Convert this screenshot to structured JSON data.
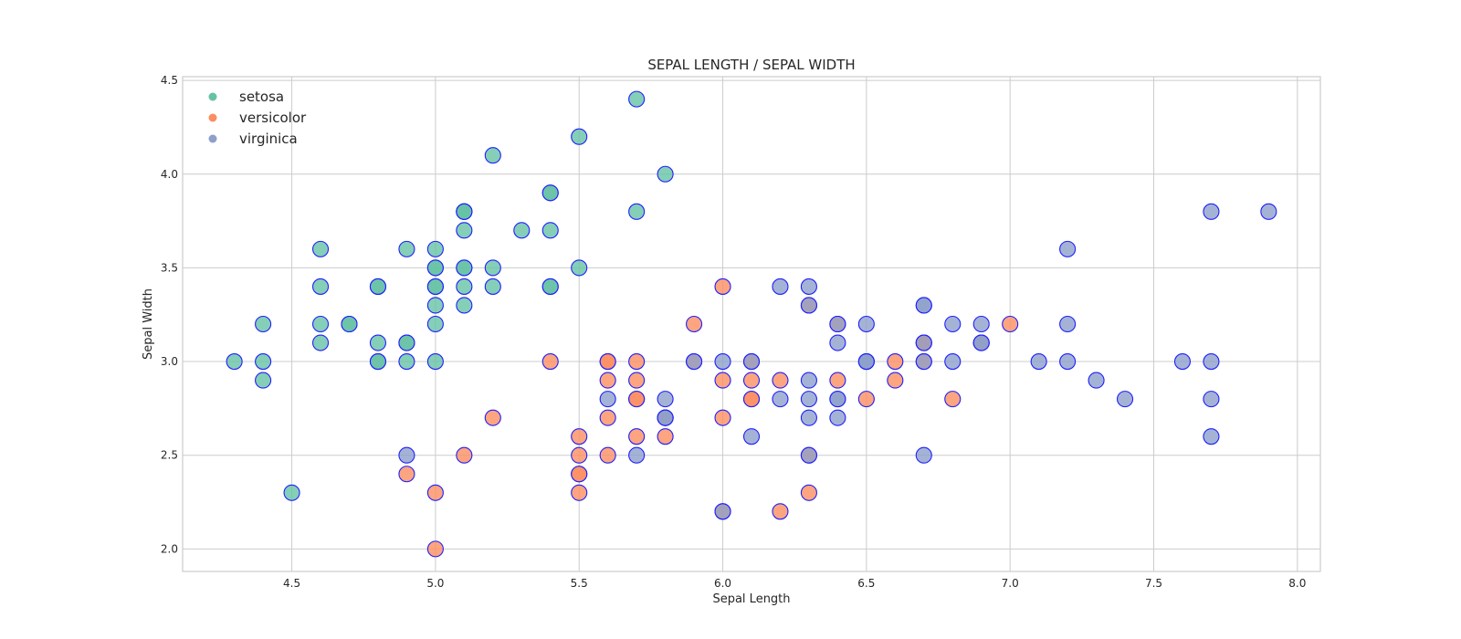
{
  "chart_data": {
    "type": "scatter",
    "title": "SEPAL LENGTH / SEPAL WIDTH",
    "xlabel": "Sepal Length",
    "ylabel": "Sepal Width",
    "xlim": [
      4.12,
      8.08
    ],
    "ylim": [
      1.88,
      4.52
    ],
    "xticks": [
      4.5,
      5.0,
      5.5,
      6.0,
      6.5,
      7.0,
      7.5,
      8.0
    ],
    "yticks": [
      2.0,
      2.5,
      3.0,
      3.5,
      4.0,
      4.5
    ],
    "grid": true,
    "legend_position": "top-left",
    "marker_edge_color": "#1f1fff",
    "series": [
      {
        "name": "setosa",
        "color": "#66c2a5",
        "points": [
          [
            5.1,
            3.5
          ],
          [
            4.9,
            3.0
          ],
          [
            4.7,
            3.2
          ],
          [
            4.6,
            3.1
          ],
          [
            5.0,
            3.6
          ],
          [
            5.4,
            3.9
          ],
          [
            4.6,
            3.4
          ],
          [
            5.0,
            3.4
          ],
          [
            4.4,
            2.9
          ],
          [
            4.9,
            3.1
          ],
          [
            5.4,
            3.7
          ],
          [
            4.8,
            3.4
          ],
          [
            4.8,
            3.0
          ],
          [
            4.3,
            3.0
          ],
          [
            5.8,
            4.0
          ],
          [
            5.7,
            4.4
          ],
          [
            5.4,
            3.9
          ],
          [
            5.1,
            3.5
          ],
          [
            5.7,
            3.8
          ],
          [
            5.1,
            3.8
          ],
          [
            5.4,
            3.4
          ],
          [
            5.1,
            3.7
          ],
          [
            4.6,
            3.6
          ],
          [
            5.1,
            3.3
          ],
          [
            4.8,
            3.4
          ],
          [
            5.0,
            3.0
          ],
          [
            5.0,
            3.4
          ],
          [
            5.2,
            3.5
          ],
          [
            5.2,
            3.4
          ],
          [
            4.7,
            3.2
          ],
          [
            4.8,
            3.1
          ],
          [
            5.4,
            3.4
          ],
          [
            5.2,
            4.1
          ],
          [
            5.5,
            4.2
          ],
          [
            4.9,
            3.1
          ],
          [
            5.0,
            3.2
          ],
          [
            5.5,
            3.5
          ],
          [
            4.9,
            3.6
          ],
          [
            4.4,
            3.0
          ],
          [
            5.1,
            3.4
          ],
          [
            5.0,
            3.5
          ],
          [
            4.5,
            2.3
          ],
          [
            4.4,
            3.2
          ],
          [
            5.0,
            3.5
          ],
          [
            5.1,
            3.8
          ],
          [
            4.8,
            3.0
          ],
          [
            5.1,
            3.8
          ],
          [
            4.6,
            3.2
          ],
          [
            5.3,
            3.7
          ],
          [
            5.0,
            3.3
          ]
        ]
      },
      {
        "name": "versicolor",
        "color": "#fc8d62",
        "points": [
          [
            7.0,
            3.2
          ],
          [
            6.4,
            3.2
          ],
          [
            6.9,
            3.1
          ],
          [
            5.5,
            2.3
          ],
          [
            6.5,
            2.8
          ],
          [
            5.7,
            2.8
          ],
          [
            6.3,
            3.3
          ],
          [
            4.9,
            2.4
          ],
          [
            6.6,
            2.9
          ],
          [
            5.2,
            2.7
          ],
          [
            5.0,
            2.0
          ],
          [
            5.9,
            3.0
          ],
          [
            6.0,
            2.2
          ],
          [
            6.1,
            2.9
          ],
          [
            5.6,
            2.9
          ],
          [
            6.7,
            3.1
          ],
          [
            5.6,
            3.0
          ],
          [
            5.8,
            2.7
          ],
          [
            6.2,
            2.2
          ],
          [
            5.6,
            2.5
          ],
          [
            5.9,
            3.2
          ],
          [
            6.1,
            2.8
          ],
          [
            6.3,
            2.5
          ],
          [
            6.1,
            2.8
          ],
          [
            6.4,
            2.9
          ],
          [
            6.6,
            3.0
          ],
          [
            6.8,
            2.8
          ],
          [
            6.7,
            3.0
          ],
          [
            6.0,
            2.9
          ],
          [
            5.7,
            2.6
          ],
          [
            5.5,
            2.4
          ],
          [
            5.5,
            2.4
          ],
          [
            5.8,
            2.7
          ],
          [
            6.0,
            2.7
          ],
          [
            5.4,
            3.0
          ],
          [
            6.0,
            3.4
          ],
          [
            6.7,
            3.1
          ],
          [
            6.3,
            2.3
          ],
          [
            5.6,
            3.0
          ],
          [
            5.5,
            2.5
          ],
          [
            5.5,
            2.6
          ],
          [
            6.1,
            3.0
          ],
          [
            5.8,
            2.6
          ],
          [
            5.0,
            2.3
          ],
          [
            5.6,
            2.7
          ],
          [
            5.7,
            3.0
          ],
          [
            5.7,
            2.9
          ],
          [
            6.2,
            2.9
          ],
          [
            5.1,
            2.5
          ],
          [
            5.7,
            2.8
          ]
        ]
      },
      {
        "name": "virginica",
        "color": "#8da0cb",
        "points": [
          [
            6.3,
            3.3
          ],
          [
            5.8,
            2.7
          ],
          [
            7.1,
            3.0
          ],
          [
            6.3,
            2.9
          ],
          [
            6.5,
            3.0
          ],
          [
            7.6,
            3.0
          ],
          [
            4.9,
            2.5
          ],
          [
            7.3,
            2.9
          ],
          [
            6.7,
            2.5
          ],
          [
            7.2,
            3.6
          ],
          [
            6.5,
            3.2
          ],
          [
            6.4,
            2.7
          ],
          [
            6.8,
            3.0
          ],
          [
            5.7,
            2.5
          ],
          [
            5.8,
            2.8
          ],
          [
            6.4,
            3.2
          ],
          [
            6.5,
            3.0
          ],
          [
            7.7,
            3.8
          ],
          [
            7.7,
            2.6
          ],
          [
            6.0,
            2.2
          ],
          [
            6.9,
            3.2
          ],
          [
            5.6,
            2.8
          ],
          [
            7.7,
            2.8
          ],
          [
            6.3,
            2.7
          ],
          [
            6.7,
            3.3
          ],
          [
            7.2,
            3.2
          ],
          [
            6.2,
            2.8
          ],
          [
            6.1,
            3.0
          ],
          [
            6.4,
            2.8
          ],
          [
            7.2,
            3.0
          ],
          [
            7.4,
            2.8
          ],
          [
            7.9,
            3.8
          ],
          [
            6.4,
            2.8
          ],
          [
            6.3,
            2.8
          ],
          [
            6.1,
            2.6
          ],
          [
            7.7,
            3.0
          ],
          [
            6.3,
            3.4
          ],
          [
            6.4,
            3.1
          ],
          [
            6.0,
            3.0
          ],
          [
            6.9,
            3.1
          ],
          [
            6.7,
            3.1
          ],
          [
            6.9,
            3.1
          ],
          [
            5.8,
            2.7
          ],
          [
            6.8,
            3.2
          ],
          [
            6.7,
            3.3
          ],
          [
            6.7,
            3.0
          ],
          [
            6.3,
            2.5
          ],
          [
            6.5,
            3.0
          ],
          [
            6.2,
            3.4
          ],
          [
            5.9,
            3.0
          ]
        ]
      }
    ]
  }
}
